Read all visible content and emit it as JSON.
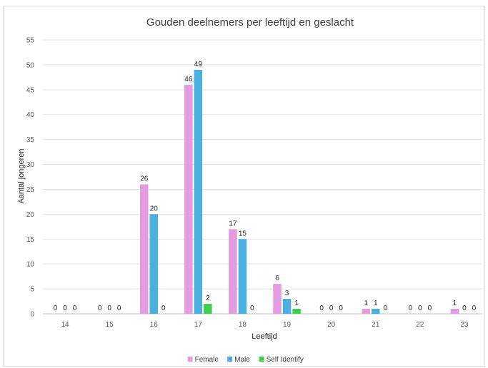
{
  "chart_data": {
    "type": "bar",
    "title": "Gouden deelnemers per leeftijd en geslacht",
    "xlabel": "Leeftijd",
    "ylabel": "Aantal jongeren",
    "ylim": [
      0,
      55
    ],
    "ytick_step": 5,
    "grid": true,
    "legend_position": "bottom",
    "categories": [
      "14",
      "15",
      "16",
      "17",
      "18",
      "19",
      "20",
      "21",
      "22",
      "23"
    ],
    "series": [
      {
        "name": "Female",
        "color": "#e49be0",
        "values": [
          0,
          0,
          26,
          46,
          17,
          6,
          0,
          1,
          0,
          1
        ]
      },
      {
        "name": "Male",
        "color": "#4ab0df",
        "values": [
          0,
          0,
          20,
          49,
          15,
          3,
          0,
          1,
          0,
          0
        ]
      },
      {
        "name": "Self Identify",
        "color": "#3ecf4c",
        "values": [
          0,
          0,
          0,
          2,
          0,
          1,
          0,
          0,
          0,
          0
        ]
      }
    ]
  }
}
